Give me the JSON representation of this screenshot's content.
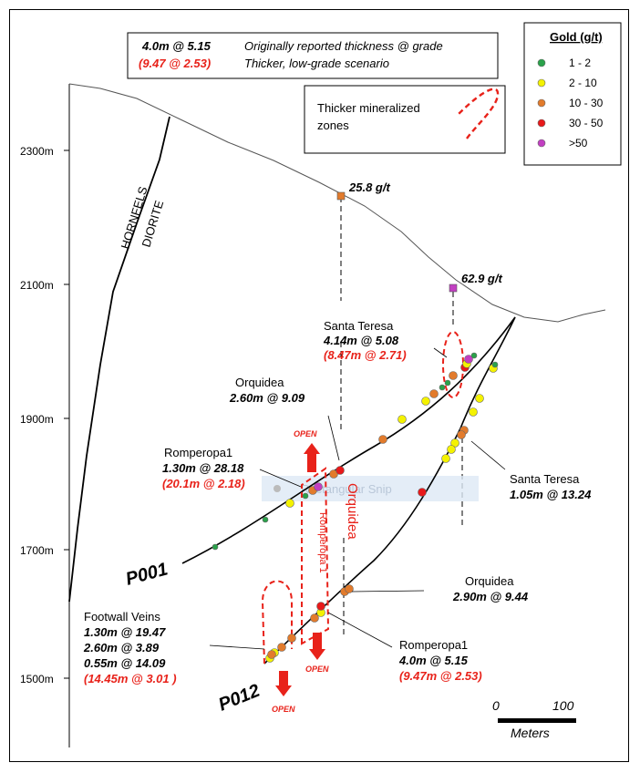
{
  "header_box": {
    "line1_value": "4.0m  @  5.15",
    "line1_desc": "Originally reported thickness @ grade",
    "line2_value": "(9.47 @ 2.53)",
    "line2_desc": "Thicker, low-grade scenario"
  },
  "zones_box": {
    "line1": "Thicker mineralized",
    "line2": "zones"
  },
  "legend": {
    "title": "Gold  (g/t)",
    "items": [
      {
        "label": "1  - 2",
        "color": "#2aa24a"
      },
      {
        "label": "2 - 10",
        "color": "#f4f200"
      },
      {
        "label": "10 - 30",
        "color": "#e27b2c"
      },
      {
        "label": "30 - 50",
        "color": "#e8191a"
      },
      {
        "label": ">50",
        "color": "#c23fc2"
      }
    ]
  },
  "elevations": [
    "2300m",
    "2100m",
    "1900m",
    "1700m",
    "1500m"
  ],
  "geology": {
    "hornfels": "HORNFELS",
    "diorite": "DIORITE"
  },
  "surface_samples": [
    {
      "label": "25.8 g/t",
      "color": "#e27b2c"
    },
    {
      "label": "62.9 g/t",
      "color": "#c23fc2"
    }
  ],
  "holes": {
    "p001": "P001",
    "p012": "P012"
  },
  "annotations": {
    "santa_teresa_upper": {
      "name": "Santa Teresa",
      "value": "4.14m @ 5.08",
      "alt": "(8.47m @ 2.71)"
    },
    "orquidea_upper": {
      "name": "Orquidea",
      "value": "2.60m @ 9.09"
    },
    "romperopa_upper": {
      "name": "Romperopa1",
      "value": "1.30m @ 28.18",
      "alt": "(20.1m @ 2.18)"
    },
    "santa_teresa_lower": {
      "name": "Santa Teresa",
      "value": "1.05m @ 13.24"
    },
    "orquidea_lower": {
      "name": "Orquidea",
      "value": "2.90m @ 9.44"
    },
    "footwall": {
      "name": "Footwall Veins",
      "v1": "1.30m @ 19.47",
      "v2": "2.60m @ 3.89",
      "v3": "0.55m @ 14.09",
      "alt": "(14.45m @ 3.01 )"
    },
    "romperopa_lower": {
      "name": "Romperopa1",
      "value": "4.0m @ 5.15",
      "alt": "(9.47m @ 2.53)"
    }
  },
  "zone_labels": {
    "orquidea": "Orquidea",
    "romperopa": "Romperopa  1",
    "open": "OPEN"
  },
  "watermark": "Rectangular Snip",
  "scale": {
    "zero": "0",
    "hundred": "100",
    "unit": "Meters"
  }
}
